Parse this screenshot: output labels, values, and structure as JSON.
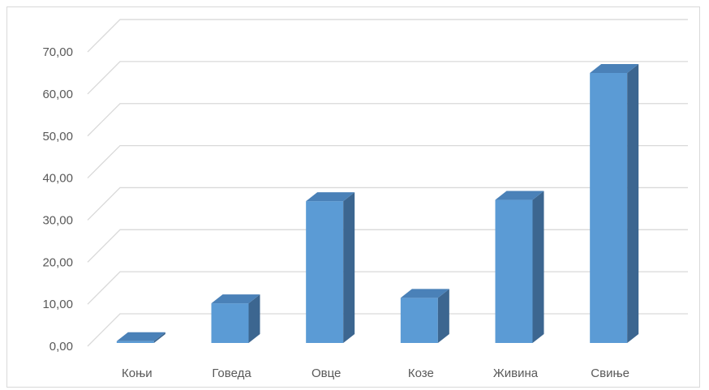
{
  "chart_data": {
    "type": "bar",
    "style": "3d-column",
    "categories": [
      "Коњи",
      "Говеда",
      "Овце",
      "Козе",
      "Живина",
      "Свиње"
    ],
    "values": [
      1.2,
      10.2,
      34.5,
      11.5,
      34.8,
      65.0
    ],
    "ylim": [
      0,
      70
    ],
    "ytick_step": 10,
    "ytick_labels": [
      "0,00",
      "10,00",
      "20,00",
      "30,00",
      "40,00",
      "50,00",
      "60,00",
      "70,00"
    ],
    "grid": true,
    "legend": "none",
    "title": "",
    "xlabel": "",
    "ylabel": ""
  },
  "colors": {
    "bar_front": "#5b9bd5",
    "bar_side": "#3c6690",
    "bar_top": "#4a81b8",
    "grid": "#d9d9d9",
    "text": "#595959"
  }
}
